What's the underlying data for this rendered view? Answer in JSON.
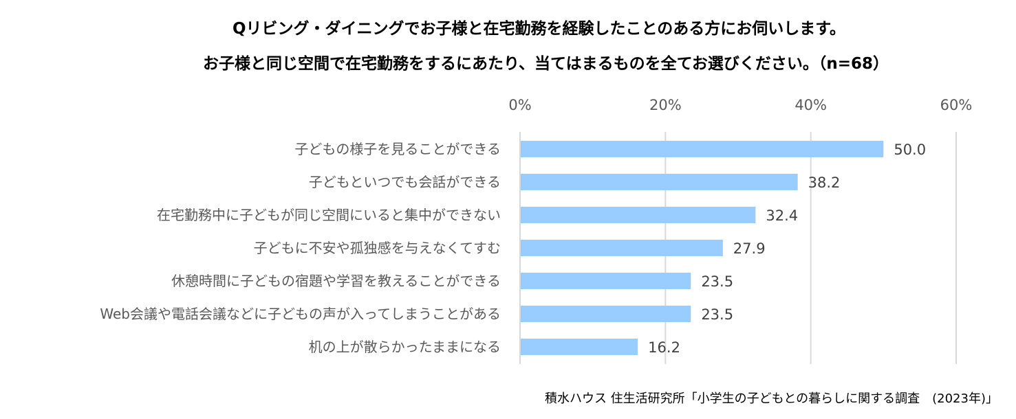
{
  "title_line1": "Qリビング・ダイニングでお子様と在宅勤務を経験したことのある方にお伺いします。",
  "title_line2": "お子様と同じ空間で在宅勤務をするにあたり、当てはまるものを全てお選びください。（n=68）",
  "source": "積水ハウス 住生活研究所「小学生の子どもとの暮らしに関する調査　(2023年)」",
  "chart_data": {
    "type": "bar",
    "orientation": "horizontal",
    "categories": [
      "子どもの様子を見ることができる",
      "子どもといつでも会話ができる",
      "在宅勤務中に子どもが同じ空間にいると集中ができない",
      "子どもに不安や孤独感を与えなくてすむ",
      "休憩時間に子どもの宿題や学習を教えることができる",
      "Web会議や電話会議などに子どもの声が入ってしまうことがある",
      "机の上が散らかったままになる"
    ],
    "values": [
      50.0,
      38.2,
      32.4,
      27.9,
      23.5,
      23.5,
      16.2
    ],
    "value_labels": [
      "50.0",
      "38.2",
      "32.4",
      "27.9",
      "23.5",
      "23.5",
      "16.2"
    ],
    "xlim": [
      0,
      60
    ],
    "xticks": [
      "0%",
      "20%",
      "40%",
      "60%"
    ],
    "xtick_values": [
      0,
      20,
      40,
      60
    ],
    "grid": true,
    "bar_color": "#99CCFF",
    "grid_color": "#D9D9D9"
  }
}
